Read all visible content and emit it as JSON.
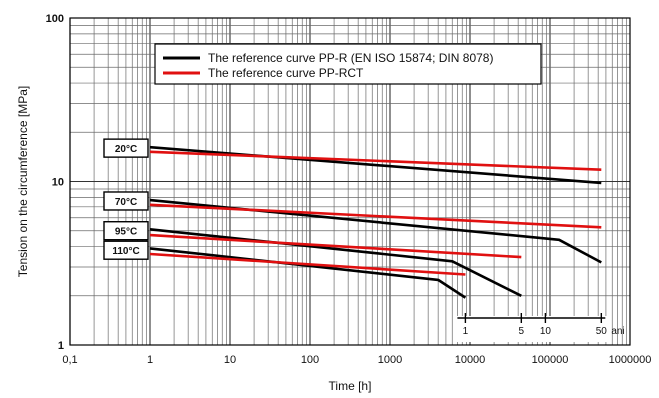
{
  "chart_data": {
    "type": "line",
    "xlabel": "Time [h]",
    "ylabel": "Tension on the circumference [MPa]",
    "x_scale": "log",
    "y_scale": "log",
    "xlim": [
      0.1,
      1000000
    ],
    "ylim": [
      1,
      100
    ],
    "x_ticks": [
      "0,1",
      "1",
      "10",
      "100",
      "1000",
      "10000",
      "100000",
      "1000000"
    ],
    "y_ticks": [
      "1",
      "10",
      "100"
    ],
    "grid": true,
    "legend_position": "top-center",
    "legend": [
      {
        "label": "The reference curve PP-R (EN ISO 15874; DIN 8078)",
        "color": "#000000"
      },
      {
        "label": "The reference curve PP-RCT",
        "color": "#e01010"
      }
    ],
    "temperature_labels": [
      {
        "text": "20°C",
        "y": 16
      },
      {
        "text": "70°C",
        "y": 7.6
      },
      {
        "text": "95°C",
        "y": 5
      },
      {
        "text": "110°C",
        "y": 3.8
      }
    ],
    "years_scale": {
      "unit": "ani",
      "marks": [
        {
          "label": "1",
          "x": 8760
        },
        {
          "label": "5",
          "x": 43800
        },
        {
          "label": "10",
          "x": 87600
        },
        {
          "label": "50",
          "x": 438000
        }
      ]
    },
    "series": [
      {
        "group": "PP-R",
        "temperature": "20°C",
        "color": "#000000",
        "points": [
          [
            1,
            16.2
          ],
          [
            438000,
            9.8
          ]
        ]
      },
      {
        "group": "PP-R",
        "temperature": "70°C",
        "color": "#000000",
        "points": [
          [
            1,
            7.7
          ],
          [
            130000,
            4.4
          ],
          [
            438000,
            3.2
          ]
        ]
      },
      {
        "group": "PP-R",
        "temperature": "95°C",
        "color": "#000000",
        "points": [
          [
            1,
            5.1
          ],
          [
            6000,
            3.25
          ],
          [
            43800,
            2.0
          ]
        ]
      },
      {
        "group": "PP-R",
        "temperature": "110°C",
        "color": "#000000",
        "points": [
          [
            1,
            3.9
          ],
          [
            4000,
            2.5
          ],
          [
            8760,
            1.95
          ]
        ]
      },
      {
        "group": "PP-RCT",
        "temperature": "20°C",
        "color": "#e01010",
        "points": [
          [
            1,
            15.2
          ],
          [
            438000,
            11.8
          ]
        ]
      },
      {
        "group": "PP-RCT",
        "temperature": "70°C",
        "color": "#e01010",
        "points": [
          [
            1,
            7.2
          ],
          [
            438000,
            5.25
          ]
        ]
      },
      {
        "group": "PP-RCT",
        "temperature": "95°C",
        "color": "#e01010",
        "points": [
          [
            1,
            4.7
          ],
          [
            43800,
            3.45
          ]
        ]
      },
      {
        "group": "PP-RCT",
        "temperature": "110°C",
        "color": "#e01010",
        "points": [
          [
            1,
            3.6
          ],
          [
            8760,
            2.7
          ]
        ]
      }
    ]
  }
}
